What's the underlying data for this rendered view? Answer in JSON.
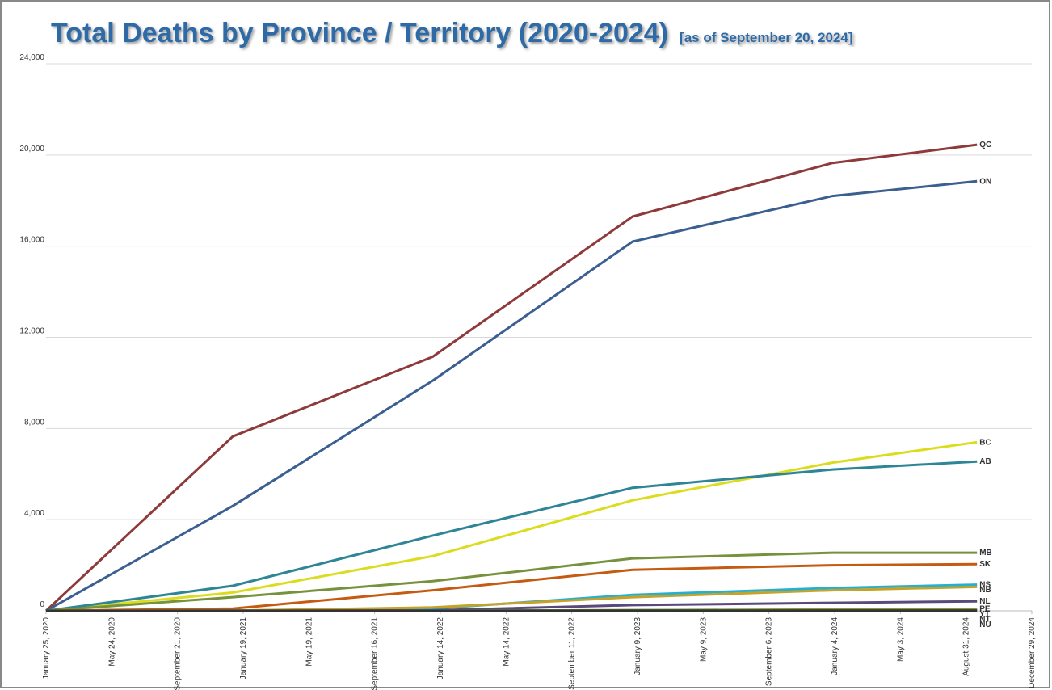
{
  "chart_data": {
    "type": "line",
    "title": "Total Deaths by Province / Territory (2020-2024)",
    "subtitle": "[as of September 20, 2024]",
    "x": [
      "2020-01-25",
      "2020-12-31",
      "2021-12-31",
      "2022-12-31",
      "2023-12-31",
      "2024-09-20"
    ],
    "xlim": [
      "2020-01-25",
      "2024-12-29"
    ],
    "xticks": [
      {
        "value": "2020-01-25",
        "label": "January 25, 2020"
      },
      {
        "value": "2020-05-24",
        "label": "May 24, 2020"
      },
      {
        "value": "2020-09-21",
        "label": "September 21, 2020"
      },
      {
        "value": "2021-01-19",
        "label": "January 19, 2021"
      },
      {
        "value": "2021-05-19",
        "label": "May 19, 2021"
      },
      {
        "value": "2021-09-16",
        "label": "September 16, 2021"
      },
      {
        "value": "2022-01-14",
        "label": "January 14, 2022"
      },
      {
        "value": "2022-05-14",
        "label": "May 14, 2022"
      },
      {
        "value": "2022-09-11",
        "label": "September 11, 2022"
      },
      {
        "value": "2023-01-09",
        "label": "January 9, 2023"
      },
      {
        "value": "2023-05-09",
        "label": "May 9, 2023"
      },
      {
        "value": "2023-09-06",
        "label": "September 6, 2023"
      },
      {
        "value": "2024-01-04",
        "label": "January 4, 2024"
      },
      {
        "value": "2024-05-03",
        "label": "May 3, 2024"
      },
      {
        "value": "2024-08-31",
        "label": "August 31, 2024"
      },
      {
        "value": "2024-12-29",
        "label": "December 29, 2024"
      }
    ],
    "ylim": [
      0,
      24000
    ],
    "yticks": [
      0,
      {
        "value": 4000,
        "label": "4,000"
      },
      {
        "value": 8000,
        "label": "8,000"
      },
      {
        "value": 12000,
        "label": "12,000"
      },
      {
        "value": 16000,
        "label": "16,000"
      },
      {
        "value": 20000,
        "label": "20,000"
      },
      {
        "value": 24000,
        "label": "24,000"
      }
    ],
    "grid": true,
    "series": [
      {
        "name": "QC",
        "color": "#8e3a3a",
        "values": [
          0,
          7650,
          11150,
          17300,
          19650,
          20450
        ]
      },
      {
        "name": "ON",
        "color": "#3c5f91",
        "values": [
          0,
          4600,
          10100,
          16200,
          18200,
          18850
        ]
      },
      {
        "name": "BC",
        "color": "#dcdc1e",
        "values": [
          0,
          800,
          2400,
          4850,
          6500,
          7400
        ]
      },
      {
        "name": "AB",
        "color": "#2e8595",
        "values": [
          0,
          1100,
          3300,
          5400,
          6200,
          6550
        ]
      },
      {
        "name": "MB",
        "color": "#76923c",
        "values": [
          0,
          600,
          1300,
          2300,
          2550,
          2550
        ]
      },
      {
        "name": "SK",
        "color": "#c55a11",
        "values": [
          0,
          100,
          900,
          1800,
          2000,
          2050
        ]
      },
      {
        "name": "NS",
        "color": "#26b0d0",
        "values": [
          0,
          10,
          100,
          700,
          1000,
          1150
        ]
      },
      {
        "name": "NB",
        "color": "#c8a228",
        "values": [
          0,
          10,
          150,
          600,
          900,
          1050
        ]
      },
      {
        "name": "NL",
        "color": "#5a4a7a",
        "values": [
          0,
          5,
          20,
          250,
          350,
          420
        ]
      },
      {
        "name": "PE",
        "color": "#a0a030",
        "values": [
          0,
          0,
          0,
          30,
          60,
          80
        ]
      },
      {
        "name": "YT",
        "color": "#888888",
        "values": [
          0,
          0,
          5,
          25,
          30,
          35
        ]
      },
      {
        "name": "NT",
        "color": "#5a8a3a",
        "values": [
          0,
          0,
          5,
          20,
          25,
          25
        ]
      },
      {
        "name": "NU",
        "color": "#333333",
        "values": [
          0,
          0,
          0,
          5,
          8,
          10
        ]
      }
    ]
  }
}
